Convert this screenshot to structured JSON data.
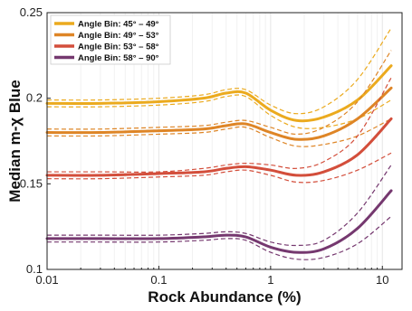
{
  "chart_data": {
    "type": "line",
    "xlabel": "Rock Abundance (%)",
    "ylabel": "Median m-χ Blue",
    "xscale": "log",
    "xlim": [
      0.01,
      15
    ],
    "ylim": [
      0.1,
      0.25
    ],
    "x_ticks": [
      0.01,
      0.1,
      1,
      10
    ],
    "x_tick_labels": [
      "0.01",
      "0.1",
      "1",
      "10"
    ],
    "y_ticks": [
      0.1,
      0.15,
      0.2,
      0.25
    ],
    "y_tick_labels": [
      "0.1",
      "0.15",
      "0.2",
      "0.25"
    ],
    "grid": "vertical minor log lines",
    "legend": "top-left",
    "series": [
      {
        "name": "Angle Bin: 45° – 49°",
        "color": "#EBAA1E",
        "x": [
          0.01,
          0.03,
          0.1,
          0.25,
          0.4,
          0.6,
          1.0,
          1.7,
          3.0,
          6.0,
          12.0
        ],
        "y": [
          0.197,
          0.197,
          0.198,
          0.2,
          0.203,
          0.203,
          0.193,
          0.187,
          0.189,
          0.199,
          0.219
        ],
        "upper": [
          0.199,
          0.199,
          0.2,
          0.202,
          0.205,
          0.205,
          0.196,
          0.191,
          0.195,
          0.211,
          0.241
        ],
        "lower": [
          0.195,
          0.195,
          0.196,
          0.198,
          0.201,
          0.201,
          0.19,
          0.183,
          0.183,
          0.188,
          0.199
        ]
      },
      {
        "name": "Angle Bin: 49° – 53°",
        "color": "#DE8526",
        "x": [
          0.01,
          0.03,
          0.1,
          0.25,
          0.4,
          0.6,
          1.0,
          1.7,
          3.0,
          6.0,
          12.0
        ],
        "y": [
          0.18,
          0.18,
          0.181,
          0.182,
          0.184,
          0.185,
          0.18,
          0.176,
          0.178,
          0.188,
          0.206
        ],
        "upper": [
          0.182,
          0.182,
          0.183,
          0.184,
          0.186,
          0.187,
          0.183,
          0.179,
          0.183,
          0.198,
          0.228
        ],
        "lower": [
          0.178,
          0.178,
          0.179,
          0.18,
          0.182,
          0.183,
          0.177,
          0.172,
          0.173,
          0.178,
          0.188
        ]
      },
      {
        "name": "Angle Bin: 53° – 58°",
        "color": "#D34E3B",
        "x": [
          0.01,
          0.03,
          0.1,
          0.25,
          0.4,
          0.6,
          1.0,
          1.7,
          3.0,
          6.0,
          12.0
        ],
        "y": [
          0.155,
          0.155,
          0.156,
          0.157,
          0.159,
          0.16,
          0.158,
          0.155,
          0.157,
          0.167,
          0.188
        ],
        "upper": [
          0.157,
          0.157,
          0.157,
          0.159,
          0.161,
          0.162,
          0.161,
          0.159,
          0.163,
          0.178,
          0.212
        ],
        "lower": [
          0.153,
          0.153,
          0.154,
          0.155,
          0.157,
          0.158,
          0.155,
          0.151,
          0.152,
          0.158,
          0.168
        ]
      },
      {
        "name": "Angle Bin: 58° – 90°",
        "color": "#75386F",
        "x": [
          0.01,
          0.03,
          0.1,
          0.25,
          0.4,
          0.6,
          1.0,
          1.7,
          3.0,
          6.0,
          12.0
        ],
        "y": [
          0.118,
          0.118,
          0.118,
          0.119,
          0.12,
          0.119,
          0.113,
          0.11,
          0.112,
          0.124,
          0.146
        ],
        "upper": [
          0.12,
          0.12,
          0.12,
          0.121,
          0.122,
          0.121,
          0.116,
          0.114,
          0.117,
          0.133,
          0.161
        ],
        "lower": [
          0.116,
          0.116,
          0.116,
          0.117,
          0.118,
          0.117,
          0.11,
          0.106,
          0.107,
          0.115,
          0.131
        ]
      }
    ]
  }
}
